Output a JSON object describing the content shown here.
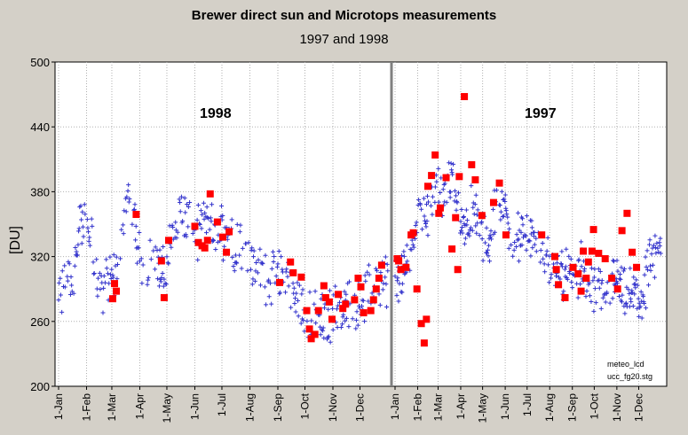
{
  "chart_data": {
    "type": "scatter",
    "title": "Brewer direct sun and Microtops measurements",
    "subtitle": "1997 and 1998",
    "xlabel": "",
    "ylabel": "[DU]",
    "ylim": [
      200,
      500
    ],
    "yticks": [
      200,
      260,
      320,
      380,
      440,
      500
    ],
    "grid": true,
    "annotations": [
      "1998",
      "1997"
    ],
    "notes": [
      "meteo_lcd",
      "ucc_fg20.stg"
    ],
    "panels": [
      {
        "year": "1998",
        "ticks": [
          "1-Jan",
          "1-Feb",
          "1-Mar",
          "1-Apr",
          "1-May",
          "1-Jun",
          "1-Jul",
          "1-Aug",
          "1-Sep",
          "1-Oct",
          "1-Nov",
          "1-Dec"
        ]
      },
      {
        "year": "1997",
        "ticks": [
          "1-Jan",
          "1-Feb",
          "1-Mar",
          "1-Apr",
          "1-May",
          "1-Jun",
          "1-Jul",
          "1-Aug",
          "1-Sep",
          "1-Oct",
          "1-Nov",
          "1-Dec"
        ]
      }
    ],
    "series": [
      {
        "name": "",
        "marker": "plus",
        "color": "#3333cc",
        "points_1998": [
          [
            5,
            285
          ],
          [
            15,
            300
          ],
          [
            25,
            355
          ],
          [
            35,
            340
          ],
          [
            45,
            290
          ],
          [
            55,
            300
          ],
          [
            65,
            305
          ],
          [
            75,
            370
          ],
          [
            85,
            345
          ],
          [
            95,
            300
          ],
          [
            105,
            330
          ],
          [
            115,
            300
          ],
          [
            125,
            340
          ],
          [
            135,
            365
          ],
          [
            145,
            345
          ],
          [
            155,
            340
          ],
          [
            165,
            355
          ],
          [
            175,
            335
          ],
          [
            185,
            350
          ],
          [
            195,
            330
          ],
          [
            205,
            335
          ],
          [
            215,
            310
          ],
          [
            225,
            300
          ],
          [
            235,
            305
          ],
          [
            245,
            300
          ],
          [
            255,
            295
          ],
          [
            265,
            280
          ],
          [
            275,
            265
          ],
          [
            285,
            262
          ],
          [
            295,
            260
          ],
          [
            305,
            270
          ],
          [
            315,
            275
          ],
          [
            325,
            275
          ],
          [
            335,
            280
          ],
          [
            345,
            290
          ],
          [
            355,
            300
          ]
        ],
        "points_1997": [
          [
            5,
            300
          ],
          [
            15,
            305
          ],
          [
            25,
            335
          ],
          [
            35,
            370
          ],
          [
            45,
            360
          ],
          [
            55,
            380
          ],
          [
            65,
            375
          ],
          [
            75,
            395
          ],
          [
            85,
            370
          ],
          [
            95,
            350
          ],
          [
            105,
            360
          ],
          [
            115,
            345
          ],
          [
            125,
            330
          ],
          [
            135,
            350
          ],
          [
            145,
            380
          ],
          [
            155,
            345
          ],
          [
            165,
            340
          ],
          [
            175,
            340
          ],
          [
            185,
            335
          ],
          [
            195,
            325
          ],
          [
            205,
            320
          ],
          [
            215,
            300
          ],
          [
            225,
            310
          ],
          [
            235,
            305
          ],
          [
            245,
            300
          ],
          [
            255,
            310
          ],
          [
            265,
            285
          ],
          [
            275,
            290
          ],
          [
            285,
            280
          ],
          [
            295,
            290
          ],
          [
            305,
            300
          ],
          [
            315,
            280
          ],
          [
            325,
            290
          ],
          [
            335,
            280
          ],
          [
            345,
            300
          ],
          [
            355,
            320
          ]
        ]
      },
      {
        "name": "",
        "marker": "square",
        "color": "#ff0000",
        "points_1998": [
          [
            60,
            281
          ],
          [
            62,
            295
          ],
          [
            64,
            288
          ],
          [
            86,
            359
          ],
          [
            114,
            316
          ],
          [
            117,
            282
          ],
          [
            122,
            335
          ],
          [
            151,
            348
          ],
          [
            155,
            333
          ],
          [
            159,
            330
          ],
          [
            162,
            328
          ],
          [
            165,
            335
          ],
          [
            168,
            378
          ],
          [
            176,
            352
          ],
          [
            182,
            338
          ],
          [
            186,
            324
          ],
          [
            189,
            343
          ],
          [
            245,
            296
          ],
          [
            257,
            315
          ],
          [
            260,
            305
          ],
          [
            269,
            301
          ],
          [
            275,
            270
          ],
          [
            278,
            253
          ],
          [
            280,
            244
          ],
          [
            284,
            248
          ],
          [
            288,
            270
          ],
          [
            294,
            293
          ],
          [
            296,
            282
          ],
          [
            300,
            278
          ],
          [
            303,
            262
          ],
          [
            310,
            285
          ],
          [
            315,
            272
          ],
          [
            318,
            276
          ],
          [
            328,
            280
          ],
          [
            332,
            300
          ],
          [
            335,
            292
          ],
          [
            338,
            268
          ],
          [
            346,
            270
          ],
          [
            349,
            280
          ],
          [
            352,
            290
          ],
          [
            355,
            300
          ],
          [
            358,
            312
          ]
        ],
        "points_1997": [
          [
            3,
            318
          ],
          [
            5,
            316
          ],
          [
            8,
            308
          ],
          [
            15,
            310
          ],
          [
            22,
            340
          ],
          [
            25,
            342
          ],
          [
            30,
            290
          ],
          [
            36,
            258
          ],
          [
            40,
            240
          ],
          [
            43,
            262
          ],
          [
            45,
            385
          ],
          [
            50,
            395
          ],
          [
            55,
            414
          ],
          [
            60,
            360
          ],
          [
            62,
            365
          ],
          [
            70,
            393
          ],
          [
            78,
            327
          ],
          [
            83,
            356
          ],
          [
            86,
            308
          ],
          [
            88,
            394
          ],
          [
            95,
            468
          ],
          [
            105,
            405
          ],
          [
            110,
            391
          ],
          [
            119,
            358
          ],
          [
            135,
            370
          ],
          [
            143,
            388
          ],
          [
            152,
            340
          ],
          [
            201,
            340
          ],
          [
            219,
            320
          ],
          [
            221,
            308
          ],
          [
            224,
            294
          ],
          [
            233,
            282
          ],
          [
            244,
            310
          ],
          [
            251,
            304
          ],
          [
            255,
            288
          ],
          [
            258,
            325
          ],
          [
            262,
            300
          ],
          [
            265,
            315
          ],
          [
            270,
            325
          ],
          [
            272,
            345
          ],
          [
            279,
            323
          ],
          [
            288,
            318
          ],
          [
            297,
            300
          ],
          [
            305,
            290
          ],
          [
            311,
            344
          ],
          [
            318,
            360
          ],
          [
            325,
            324
          ],
          [
            331,
            310
          ]
        ]
      }
    ]
  }
}
